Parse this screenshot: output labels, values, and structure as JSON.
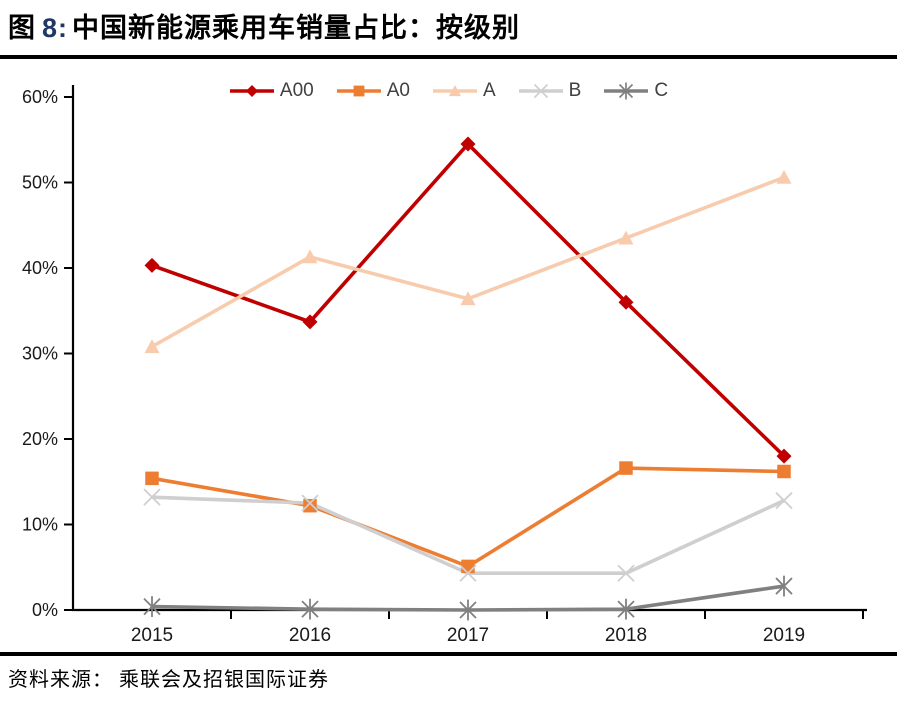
{
  "title": {
    "figure_label": "图",
    "figure_number": "8:",
    "text": "中国新能源乘用车销量占比：按级别"
  },
  "source": {
    "text": "资料来源： 乘联会及招银国际证券"
  },
  "colors": {
    "a00": "#C00000",
    "a0": "#ED7D31",
    "a": "#F8CBAD",
    "b": "#D0CECE",
    "c": "#808080",
    "axis": "#000000",
    "tick_label": "#1a1a1a",
    "legend_label": "#404040",
    "title_number": "#203864"
  },
  "chart_data": {
    "type": "line",
    "categories": [
      "2015",
      "2016",
      "2017",
      "2018",
      "2019"
    ],
    "series": [
      {
        "name": "A00",
        "color": "#C00000",
        "marker": "diamond",
        "values": [
          40.3,
          33.7,
          54.5,
          36.0,
          18.0
        ]
      },
      {
        "name": "A0",
        "color": "#ED7D31",
        "marker": "square",
        "values": [
          15.4,
          12.2,
          5.1,
          16.6,
          16.2
        ]
      },
      {
        "name": "A",
        "color": "#F8CBAD",
        "marker": "triangle",
        "values": [
          30.8,
          41.3,
          36.4,
          43.5,
          50.6
        ]
      },
      {
        "name": "B",
        "color": "#D0CECE",
        "marker": "x",
        "values": [
          13.2,
          12.5,
          4.3,
          4.3,
          12.8
        ]
      },
      {
        "name": "C",
        "color": "#808080",
        "marker": "star",
        "values": [
          0.4,
          0.1,
          0.0,
          0.1,
          2.8
        ]
      }
    ],
    "title": "中国新能源乘用车销量占比：按级别",
    "xlabel": "",
    "ylabel": "",
    "ylim": [
      0,
      60
    ],
    "ytick_step": 10,
    "ytick_labels": [
      "0%",
      "10%",
      "20%",
      "30%",
      "40%",
      "50%",
      "60%"
    ],
    "legend_position": "top",
    "grid": false
  }
}
